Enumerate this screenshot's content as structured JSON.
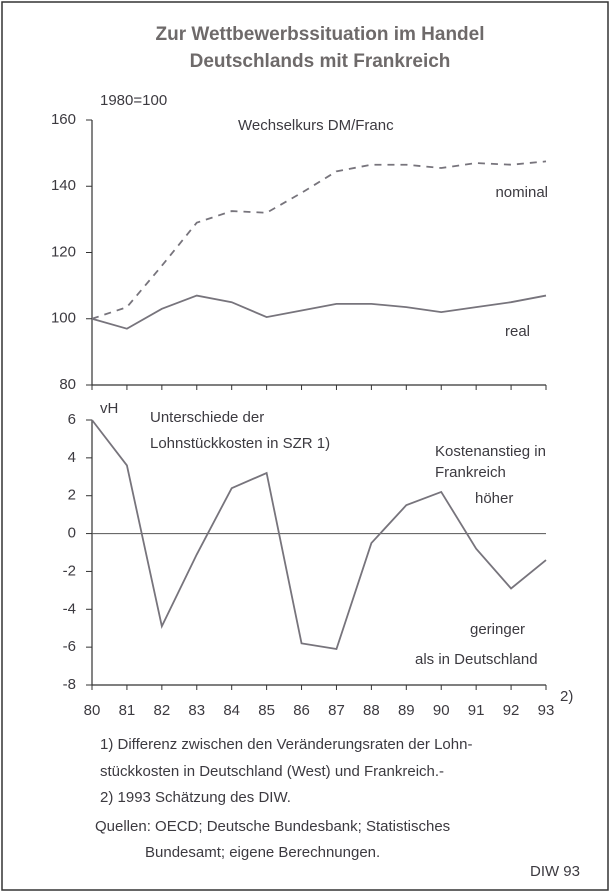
{
  "title": [
    "Zur Wettbewerbssituation im Handel",
    "Deutschlands mit Frankreich"
  ],
  "chart_data": [
    {
      "type": "line",
      "ylim": [
        80,
        160
      ],
      "yticks": [
        80,
        100,
        120,
        140,
        160
      ],
      "annotations": [
        "1980=100",
        "Wechselkurs DM/Franc"
      ],
      "series": [
        {
          "name": "nominal",
          "color": "#77747c",
          "dashed": true,
          "values": [
            100,
            103.5,
            116,
            129,
            132.5,
            132,
            138,
            144.5,
            146.5,
            146.5,
            145.5,
            147,
            146.5,
            147.5
          ]
        },
        {
          "name": "real",
          "color": "#77747c",
          "dashed": false,
          "values": [
            100,
            97,
            103,
            107,
            105,
            100.5,
            102.5,
            104.5,
            104.5,
            103.5,
            102,
            103.5,
            105,
            107
          ]
        }
      ]
    },
    {
      "type": "line",
      "ylim": [
        -8,
        6
      ],
      "yticks": [
        -8,
        -6,
        -4,
        -2,
        0,
        2,
        4,
        6
      ],
      "categories": [
        "80",
        "81",
        "82",
        "83",
        "84",
        "85",
        "86",
        "87",
        "88",
        "89",
        "90",
        "91",
        "92",
        "93"
      ],
      "annotations": [
        "vH",
        "Unterschiede der",
        "Lohnstückkosten in SZR 1)",
        "Kostenanstieg in",
        "Frankreich",
        "höher",
        "geringer",
        "als in Deutschland",
        "2)"
      ],
      "series": [
        {
          "name": "",
          "color": "#77747c",
          "dashed": false,
          "values": [
            6,
            3.6,
            -4.9,
            -1.1,
            2.4,
            3.2,
            -5.8,
            -6.1,
            -0.5,
            1.5,
            2.2,
            -0.8,
            -2.9,
            -1.4
          ]
        }
      ]
    }
  ],
  "notes": [
    "1) Differenz zwischen den Veränderungsraten der Lohn-",
    "stückkosten in Deutschland (West) und Frankreich.-",
    "2) 1993 Schätzung des DIW.",
    "Quellen: OECD; Deutsche Bundesbank; Statistisches",
    "Bundesamt; eigene Berechnungen.",
    "DIW 93"
  ]
}
